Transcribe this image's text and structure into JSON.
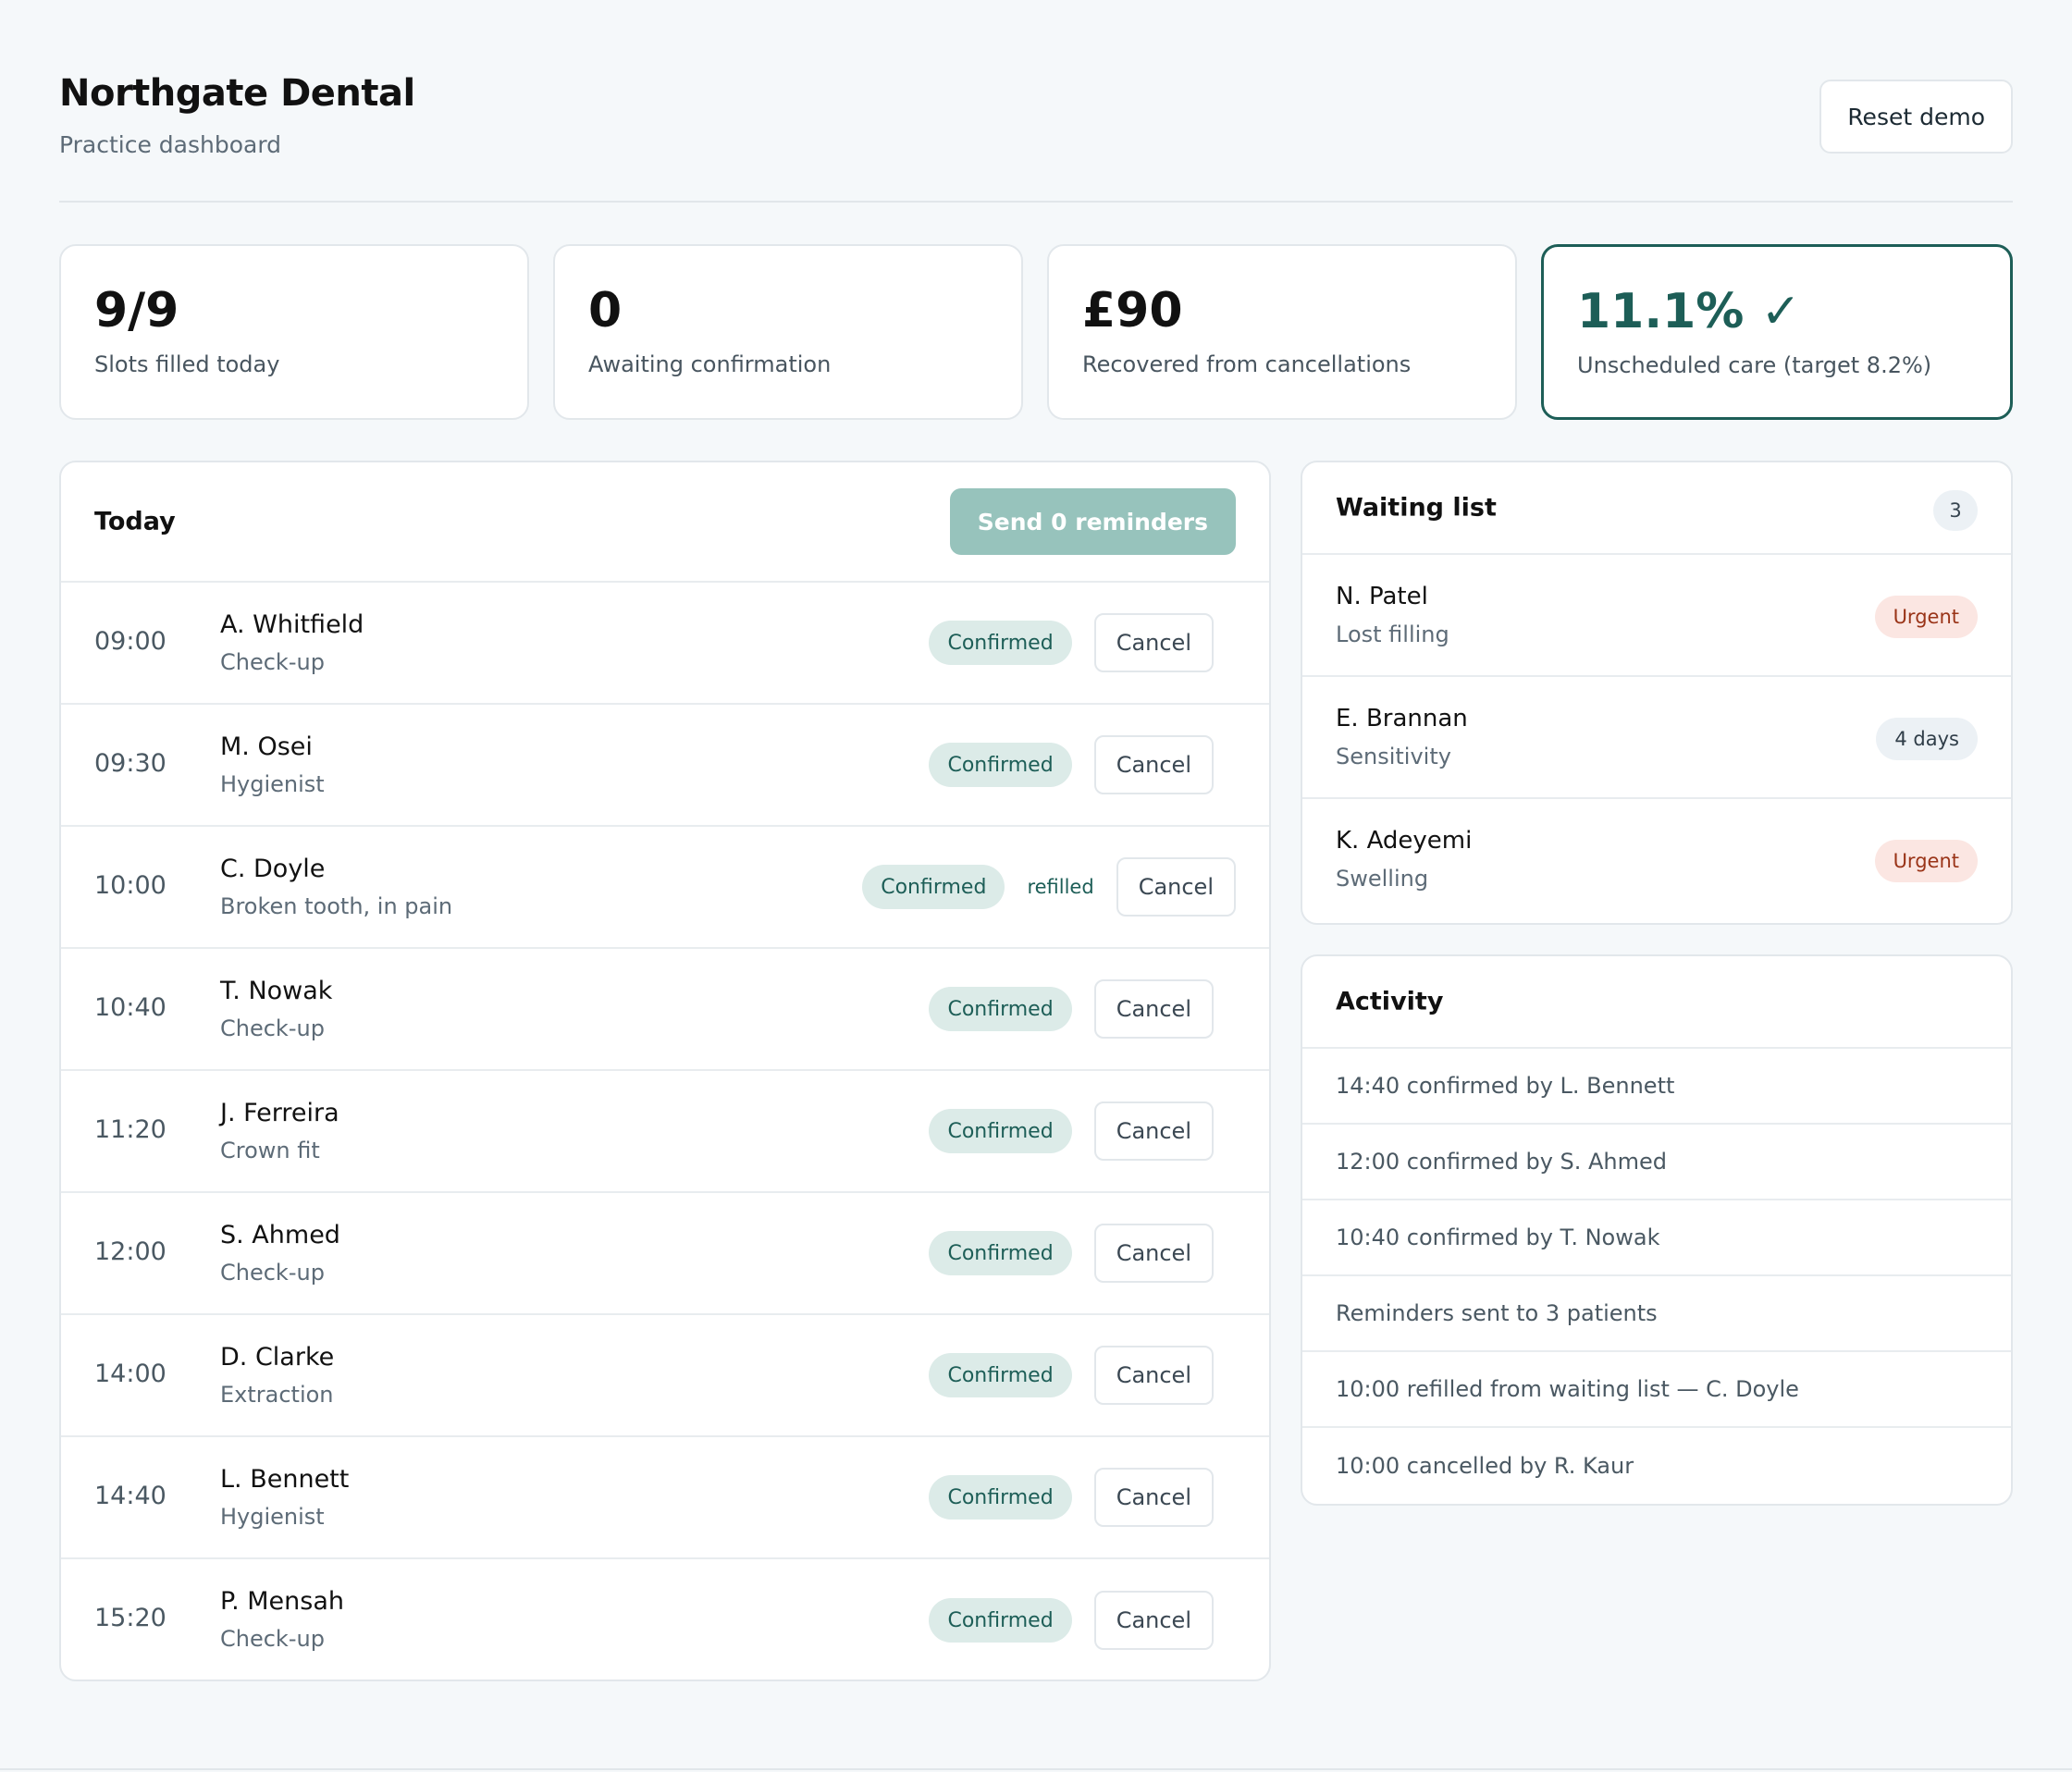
{
  "header": {
    "title": "Northgate Dental",
    "subtitle": "Practice dashboard",
    "reset_label": "Reset demo"
  },
  "stats": [
    {
      "value": "9/9",
      "label": "Slots filled today"
    },
    {
      "value": "0",
      "label": "Awaiting confirmation"
    },
    {
      "value": "£90",
      "label": "Recovered from cancellations"
    },
    {
      "value": "11.1% ✓",
      "label": "Unscheduled care (target 8.2%)"
    }
  ],
  "today": {
    "title": "Today",
    "send_label": "Send 0 reminders",
    "appointments": [
      {
        "time": "09:00",
        "name": "A. Whitfield",
        "type": "Check-up",
        "status": "Confirmed",
        "note": "",
        "cancel": "Cancel"
      },
      {
        "time": "09:30",
        "name": "M. Osei",
        "type": "Hygienist",
        "status": "Confirmed",
        "note": "",
        "cancel": "Cancel"
      },
      {
        "time": "10:00",
        "name": "C. Doyle",
        "type": "Broken tooth, in pain",
        "status": "Confirmed",
        "note": "refilled",
        "cancel": "Cancel"
      },
      {
        "time": "10:40",
        "name": "T. Nowak",
        "type": "Check-up",
        "status": "Confirmed",
        "note": "",
        "cancel": "Cancel"
      },
      {
        "time": "11:20",
        "name": "J. Ferreira",
        "type": "Crown fit",
        "status": "Confirmed",
        "note": "",
        "cancel": "Cancel"
      },
      {
        "time": "12:00",
        "name": "S. Ahmed",
        "type": "Check-up",
        "status": "Confirmed",
        "note": "",
        "cancel": "Cancel"
      },
      {
        "time": "14:00",
        "name": "D. Clarke",
        "type": "Extraction",
        "status": "Confirmed",
        "note": "",
        "cancel": "Cancel"
      },
      {
        "time": "14:40",
        "name": "L. Bennett",
        "type": "Hygienist",
        "status": "Confirmed",
        "note": "",
        "cancel": "Cancel"
      },
      {
        "time": "15:20",
        "name": "P. Mensah",
        "type": "Check-up",
        "status": "Confirmed",
        "note": "",
        "cancel": "Cancel"
      }
    ]
  },
  "waiting": {
    "title": "Waiting list",
    "count": "3",
    "items": [
      {
        "name": "N. Patel",
        "reason": "Lost filling",
        "tag": "Urgent",
        "tag_kind": "urgent"
      },
      {
        "name": "E. Brannan",
        "reason": "Sensitivity",
        "tag": "4 days",
        "tag_kind": "days"
      },
      {
        "name": "K. Adeyemi",
        "reason": "Swelling",
        "tag": "Urgent",
        "tag_kind": "urgent"
      }
    ]
  },
  "activity": {
    "title": "Activity",
    "items": [
      "14:40 confirmed by L. Bennett",
      "12:00 confirmed by S. Ahmed",
      "10:40 confirmed by T. Nowak",
      "Reminders sent to 3 patients",
      "10:00 refilled from waiting list — C. Doyle",
      "10:00 cancelled by R. Kaur"
    ]
  },
  "colors": {
    "accent": "#1d5e57",
    "accent_light": "#97c3bc",
    "urgent_bg": "#fbe6e2",
    "urgent_text": "#9a3418",
    "background": "#f5f8fa"
  }
}
